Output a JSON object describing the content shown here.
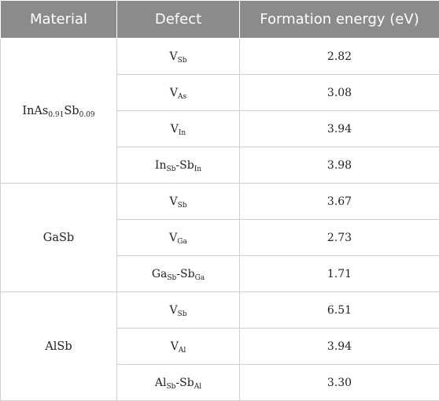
{
  "header": {
    "material": "Material",
    "defect": "Defect",
    "formation_energy": "Formation energy (eV)"
  },
  "groups": [
    {
      "material": {
        "parts": [
          "InAs",
          "0.91",
          "Sb",
          "0.09"
        ]
      },
      "rows": [
        {
          "defect": {
            "parts": [
              "V",
              "Sb",
              "",
              ""
            ]
          },
          "energy": "2.82"
        },
        {
          "defect": {
            "parts": [
              "V",
              "As",
              "",
              ""
            ]
          },
          "energy": "3.08"
        },
        {
          "defect": {
            "parts": [
              "V",
              "In",
              "",
              ""
            ]
          },
          "energy": "3.94"
        },
        {
          "defect": {
            "parts": [
              "In",
              "Sb",
              "-Sb",
              "In"
            ]
          },
          "energy": "3.98"
        }
      ]
    },
    {
      "material": {
        "parts": [
          "GaSb",
          "",
          "",
          ""
        ]
      },
      "rows": [
        {
          "defect": {
            "parts": [
              "V",
              "Sb",
              "",
              ""
            ]
          },
          "energy": "3.67"
        },
        {
          "defect": {
            "parts": [
              "V",
              "Ga",
              "",
              ""
            ]
          },
          "energy": "2.73"
        },
        {
          "defect": {
            "parts": [
              "Ga",
              "Sb",
              "-Sb",
              "Ga"
            ]
          },
          "energy": "1.71"
        }
      ]
    },
    {
      "material": {
        "parts": [
          "AlSb",
          "",
          "",
          ""
        ]
      },
      "rows": [
        {
          "defect": {
            "parts": [
              "V",
              "Sb",
              "",
              ""
            ]
          },
          "energy": "6.51"
        },
        {
          "defect": {
            "parts": [
              "V",
              "Al",
              "",
              ""
            ]
          },
          "energy": "3.94"
        },
        {
          "defect": {
            "parts": [
              "Al",
              "Sb",
              "-Sb",
              "Al"
            ]
          },
          "energy": "3.30"
        }
      ]
    }
  ]
}
